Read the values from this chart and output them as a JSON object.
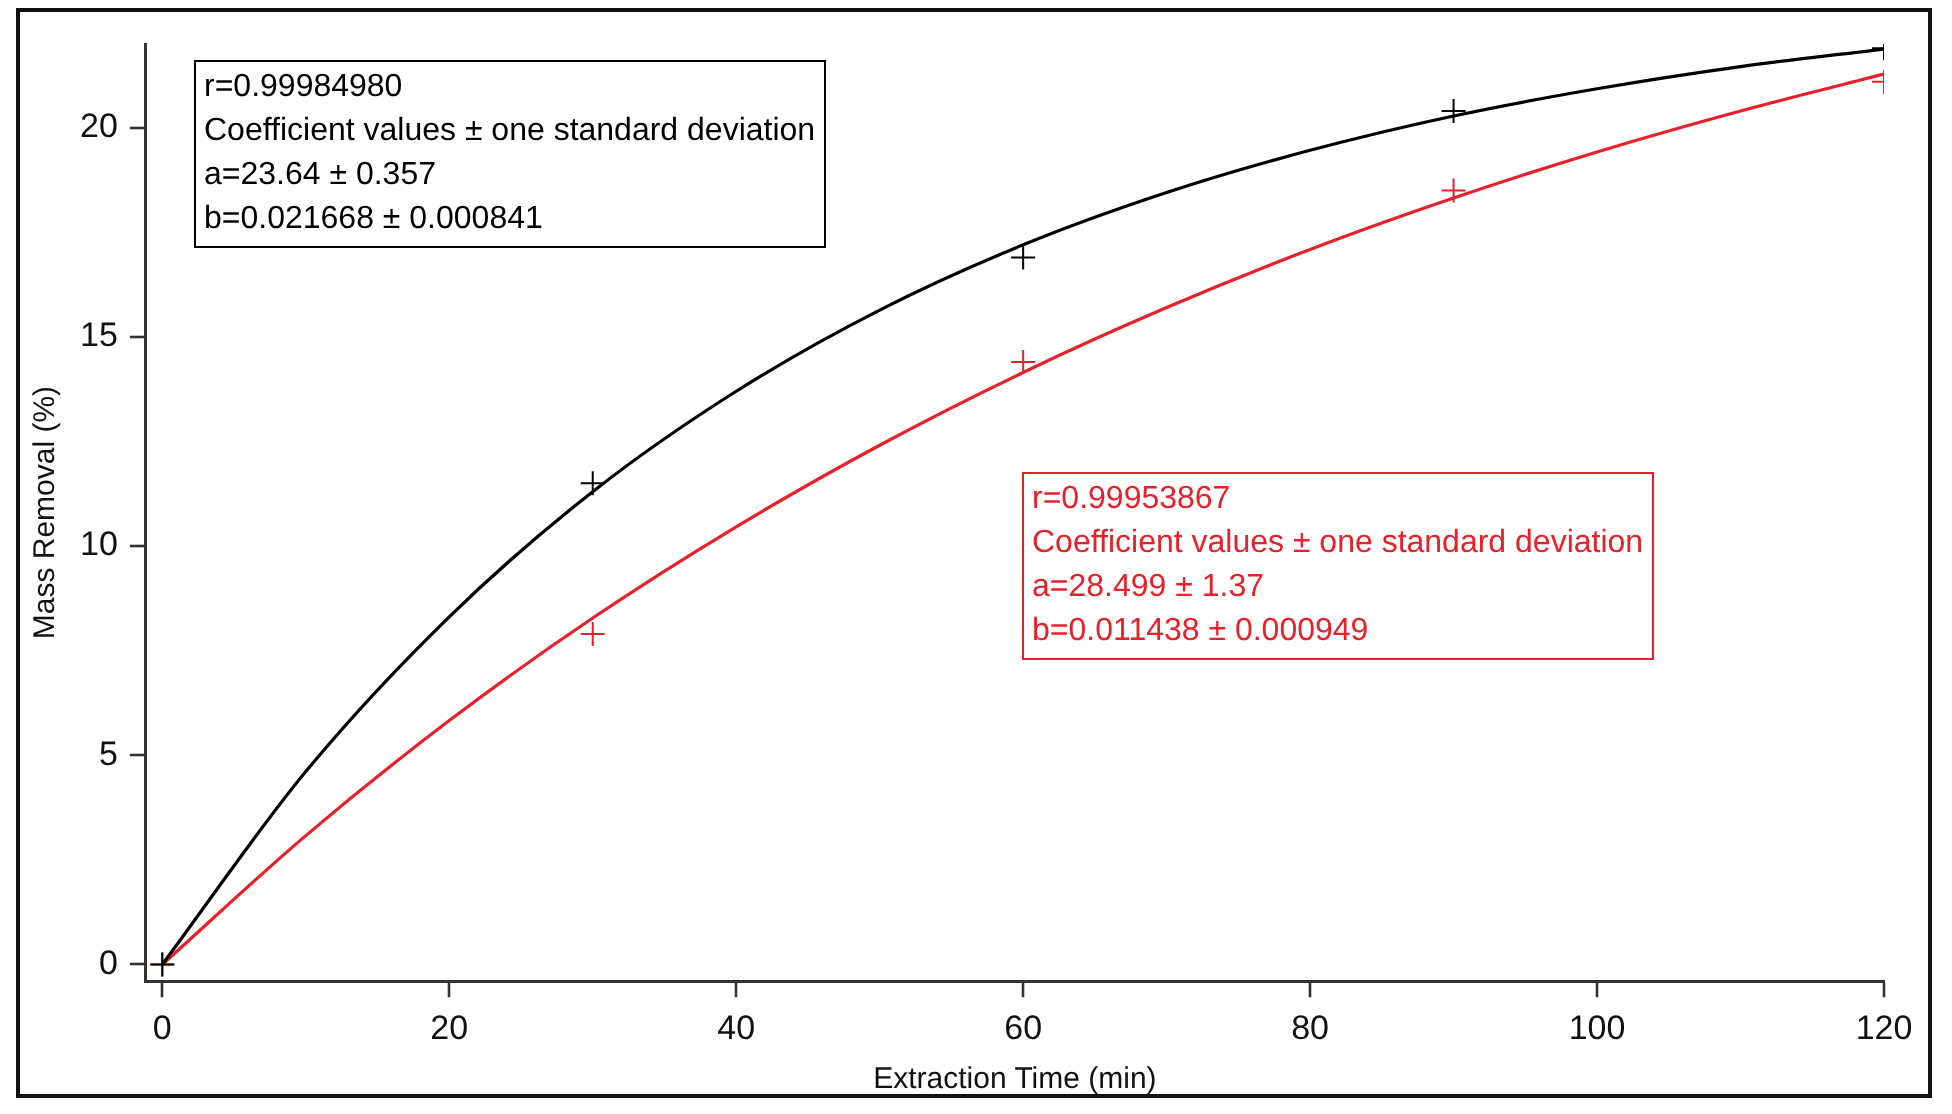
{
  "chart_data": {
    "type": "scatter",
    "xlabel": "Extraction Time (min)",
    "ylabel": "Mass Removal (%)",
    "xlim": [
      -1.15,
      120
    ],
    "xticks": [
      0,
      20,
      40,
      60,
      80,
      100,
      120
    ],
    "ylim": [
      -0.4,
      22
    ],
    "yticks": [
      0,
      5,
      10,
      15,
      20
    ],
    "grid": false,
    "legend": false,
    "marker": "cross",
    "series": [
      {
        "color": "#000000",
        "x": [
          0,
          30,
          60,
          90,
          120
        ],
        "values": [
          0,
          11.5,
          16.9,
          20.4,
          21.9
        ]
      },
      {
        "color": "#e8202a",
        "x": [
          0,
          30,
          60,
          90,
          120
        ],
        "values": [
          0,
          7.9,
          14.4,
          18.5,
          21.1
        ]
      },
      {
        "type": "line",
        "color": "#000000",
        "marker": "none",
        "x": [
          0,
          10,
          20,
          30,
          40,
          50,
          60,
          70,
          80,
          90,
          100,
          110,
          120
        ],
        "values": [
          0,
          4.61,
          8.31,
          11.3,
          13.7,
          15.64,
          17.2,
          18.45,
          19.46,
          20.28,
          20.93,
          21.46,
          21.88
        ]
      },
      {
        "type": "line",
        "color": "#e8202a",
        "marker": "none",
        "x": [
          0,
          10,
          20,
          30,
          40,
          50,
          60,
          70,
          80,
          90,
          100,
          110,
          120
        ],
        "values": [
          0,
          3.08,
          5.83,
          8.28,
          10.46,
          12.41,
          14.15,
          15.7,
          17.09,
          18.32,
          19.42,
          20.4,
          21.28
        ]
      }
    ],
    "annotations": [
      "r=0.99984980\nCoefficient values ± one standard deviation\na=23.64 ± 0.357\nb=0.021668 ± 0.000841",
      "r=0.99953867\nCoefficient values ± one standard deviation\na=28.499 ± 1.37\nb=0.011438 ± 0.000949"
    ]
  }
}
